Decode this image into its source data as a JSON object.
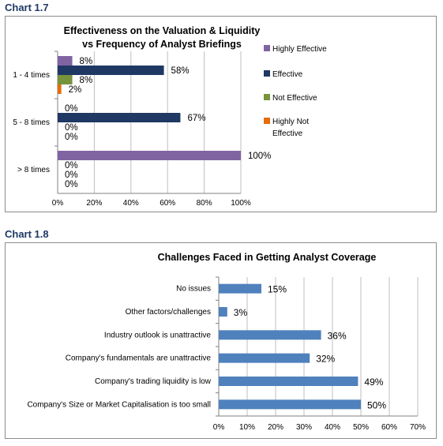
{
  "headings": {
    "chart1": "Chart 1.7",
    "chart2": "Chart 1.8"
  },
  "chart_data": [
    {
      "type": "bar",
      "orientation": "horizontal",
      "title": "Effectiveness on the Valuation & Liquidity vs Frequency of Analyst Briefings",
      "title_lines": [
        "Effectiveness on the Valuation & Liquidity",
        "vs Frequency of Analyst Briefings"
      ],
      "categories": [
        "1 - 4 times",
        "5 - 8 times",
        "> 8 times"
      ],
      "series": [
        {
          "name": "Highly Effective",
          "legend_lines": [
            "Highly Effective"
          ],
          "color": "#8064a2",
          "values": [
            8,
            0,
            100
          ]
        },
        {
          "name": "Effective",
          "legend_lines": [
            "Effective"
          ],
          "color": "#1f3864",
          "values": [
            58,
            67,
            0
          ]
        },
        {
          "name": "Not Effective",
          "legend_lines": [
            "Not Effective"
          ],
          "color": "#77933c",
          "values": [
            8,
            0,
            0
          ]
        },
        {
          "name": "Highly Not Effective",
          "legend_lines": [
            "Highly Not",
            "Effective"
          ],
          "color": "#e46c0a",
          "values": [
            2,
            0,
            0
          ]
        }
      ],
      "xlim": [
        0,
        100
      ],
      "xticks": [
        0,
        20,
        40,
        60,
        80,
        100
      ],
      "tick_suffix": "%",
      "grid": true,
      "legend": "right"
    },
    {
      "type": "bar",
      "orientation": "horizontal",
      "title": "Challenges Faced in Getting Analyst Coverage",
      "categories": [
        "No issues",
        "Other factors/challenges",
        "Industry outlook is unattractive",
        "Company's fundamentals are unattractive",
        "Company's trading liquidity is low",
        "Company's Size or Market Capitalisation is too small"
      ],
      "values": [
        15,
        3,
        36,
        32,
        49,
        50
      ],
      "color": "#4f81bd",
      "xlim": [
        0,
        70
      ],
      "xticks": [
        0,
        10,
        20,
        30,
        40,
        50,
        60,
        70
      ],
      "tick_suffix": "%",
      "grid": true
    }
  ]
}
